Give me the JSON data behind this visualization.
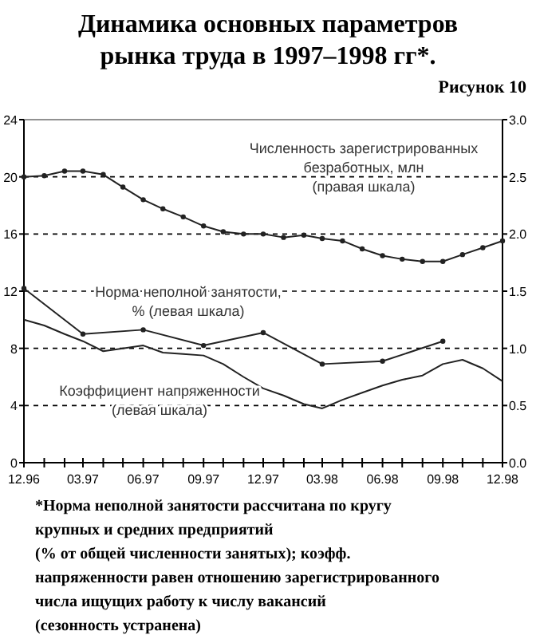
{
  "chart_data": {
    "type": "line",
    "title": "Динамика основных параметров рынка труда в 1997–1998 гг*.",
    "subtitle": "Рисунок 10",
    "x": [
      "1996-12",
      "1997-01",
      "1997-02",
      "1997-03",
      "1997-04",
      "1997-05",
      "1997-06",
      "1997-07",
      "1997-08",
      "1997-09",
      "1997-10",
      "1997-11",
      "1997-12",
      "1998-01",
      "1998-02",
      "1998-03",
      "1998-04",
      "1998-05",
      "1998-06",
      "1998-07",
      "1998-08",
      "1998-09",
      "1998-10",
      "1998-11",
      "1998-12"
    ],
    "series": [
      {
        "name": "Численность зарегистрированных безработных, млн (правая шкала)",
        "color": "#222222",
        "axis": "y2",
        "marker": "circle",
        "values": [
          2.5,
          2.51,
          2.55,
          2.55,
          2.52,
          2.41,
          2.3,
          2.22,
          2.15,
          2.07,
          2.02,
          2.0,
          2.0,
          1.97,
          1.99,
          1.96,
          1.94,
          1.87,
          1.81,
          1.78,
          1.76,
          1.76,
          1.82,
          1.88,
          1.94
        ]
      },
      {
        "name": "Норма неполной занятости, % (левая шкала)",
        "color": "#222222",
        "marker": "circle",
        "values": [
          12.2,
          null,
          null,
          9.0,
          null,
          null,
          9.3,
          null,
          null,
          8.2,
          null,
          null,
          9.1,
          null,
          null,
          6.9,
          null,
          null,
          7.1,
          null,
          null,
          8.5,
          null,
          null,
          null
        ]
      },
      {
        "name": "Коэффициент напряженности (левая шкала)",
        "color": "#222222",
        "marker": "none",
        "values": [
          10.0,
          9.6,
          9.0,
          8.5,
          7.8,
          8.0,
          8.2,
          7.7,
          7.6,
          7.5,
          6.9,
          6.0,
          5.2,
          4.7,
          4.1,
          3.8,
          4.4,
          4.9,
          5.4,
          5.8,
          6.1,
          6.9,
          7.2,
          6.6,
          5.7
        ]
      }
    ],
    "ylim": [
      0,
      24
    ],
    "yticks": [
      0,
      4,
      8,
      12,
      16,
      20,
      24
    ],
    "y2lim": [
      0,
      3
    ],
    "y2ticks": [
      {
        "value": 0,
        "label": "0.0"
      },
      {
        "value": 0.5,
        "label": "0.5"
      },
      {
        "value": 1,
        "label": "1.0"
      },
      {
        "value": 1.5,
        "label": "1.5"
      },
      {
        "value": 2,
        "label": "2.0"
      },
      {
        "value": 2.5,
        "label": "2.5"
      },
      {
        "value": 3,
        "label": "3.0"
      }
    ],
    "xlim": [
      "1996-12",
      "1998-12"
    ],
    "xticks": [
      {
        "value": "1996-12",
        "label": "12.96"
      },
      {
        "value": "1997-01",
        "label": null
      },
      {
        "value": "1997-02",
        "label": null
      },
      {
        "value": "1997-03",
        "label": "03.97"
      },
      {
        "value": "1997-04",
        "label": null
      },
      {
        "value": "1997-05",
        "label": null
      },
      {
        "value": "1997-06",
        "label": "06.97"
      },
      {
        "value": "1997-07",
        "label": null
      },
      {
        "value": "1997-08",
        "label": null
      },
      {
        "value": "1997-09",
        "label": "09.97"
      },
      {
        "value": "1997-10",
        "label": null
      },
      {
        "value": "1997-11",
        "label": null
      },
      {
        "value": "1997-12",
        "label": "12.97"
      },
      {
        "value": "1998-01",
        "label": null
      },
      {
        "value": "1998-02",
        "label": null
      },
      {
        "value": "1998-03",
        "label": "03.98"
      },
      {
        "value": "1998-04",
        "label": null
      },
      {
        "value": "1998-05",
        "label": null
      },
      {
        "value": "1998-06",
        "label": "06.98"
      },
      {
        "value": "1998-07",
        "label": null
      },
      {
        "value": "1998-08",
        "label": null
      },
      {
        "value": "1998-09",
        "label": "09.98"
      },
      {
        "value": "1998-10",
        "label": null
      },
      {
        "value": "1998-11",
        "label": null
      },
      {
        "value": "1998-12",
        "label": "12.98"
      }
    ],
    "grid": "y",
    "line_style": "solid",
    "annotations": [
      "*Норма неполной занятости рассчитана по кругу крупных и средних предприятий (% от общей численности занятых); коэфф. напряженности равен отношению зарегистрированного числа ищущих работу к числу вакансий (сезонность устранена)"
    ]
  }
}
